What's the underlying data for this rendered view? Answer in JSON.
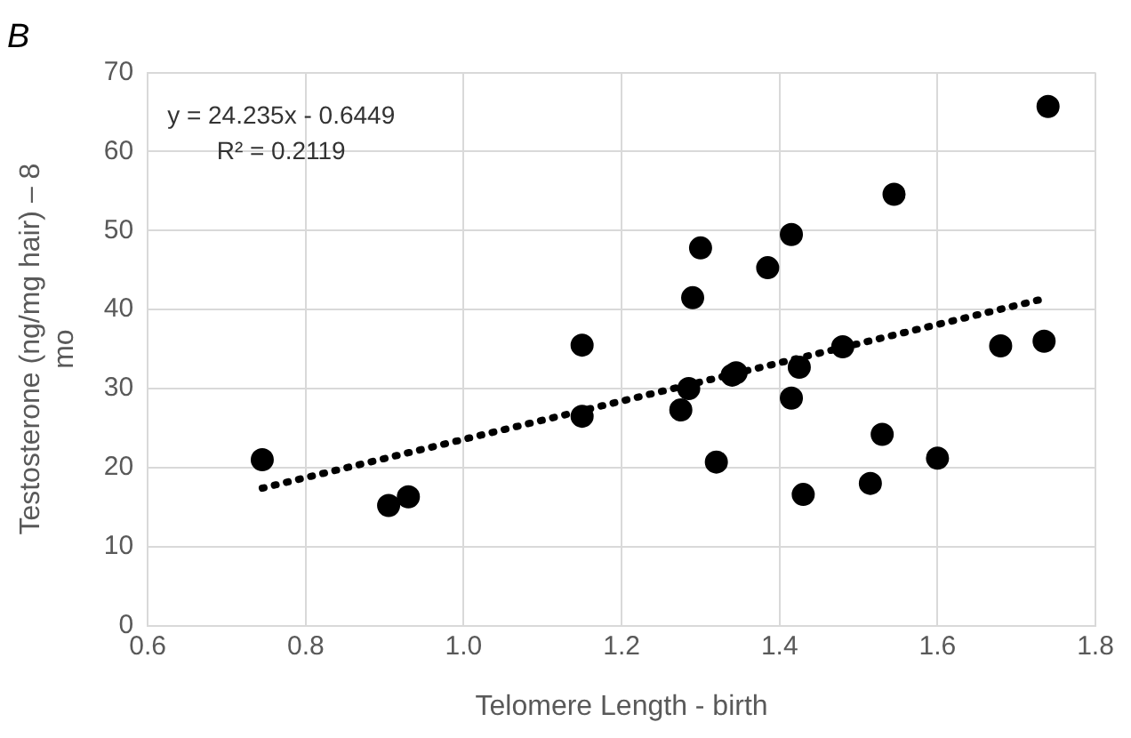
{
  "chart_data": {
    "type": "scatter",
    "title": "B",
    "xlabel": "Telomere Length - birth",
    "ylabel": "Testosterone (ng/mg hair) – 8 mo",
    "annotations": [
      "y = 24.235x - 0.6449",
      "R² = 0.2119"
    ],
    "series": [
      {
        "type": "scatter",
        "color": "#000000",
        "marker": "circle",
        "x": [
          0.745,
          0.905,
          0.93,
          1.15,
          1.15,
          1.275,
          1.285,
          1.29,
          1.3,
          1.32,
          1.34,
          1.345,
          1.385,
          1.415,
          1.415,
          1.425,
          1.43,
          1.48,
          1.515,
          1.53,
          1.545,
          1.6,
          1.68,
          1.735,
          1.74
        ],
        "values": [
          21,
          15.2,
          16.3,
          35.5,
          26.5,
          27.3,
          30,
          41.5,
          47.8,
          20.7,
          31.7,
          32,
          45.3,
          49.5,
          28.8,
          32.7,
          16.6,
          35.3,
          18,
          24.2,
          54.6,
          21.2,
          35.4,
          36,
          65.7
        ]
      },
      {
        "type": "line",
        "color": "#000000",
        "marker": "none",
        "line_style": "dotted",
        "x": [
          0.745,
          1.74
        ],
        "values": [
          17.4,
          41.5
        ]
      }
    ],
    "xlim": [
      0.6,
      1.8
    ],
    "xticks": [
      {
        "value": 0.6,
        "label": "0.6"
      },
      {
        "value": 0.8,
        "label": "0.8"
      },
      {
        "value": 1,
        "label": "1.0"
      },
      {
        "value": 1.2,
        "label": "1.2"
      },
      {
        "value": 1.4,
        "label": "1.4"
      },
      {
        "value": 1.6,
        "label": "1.6"
      },
      {
        "value": 1.8,
        "label": "1.8"
      }
    ],
    "ylim": [
      0,
      70
    ],
    "yticks": [
      0,
      10,
      20,
      30,
      40,
      50,
      60,
      70
    ],
    "grid": true,
    "legend": false
  }
}
